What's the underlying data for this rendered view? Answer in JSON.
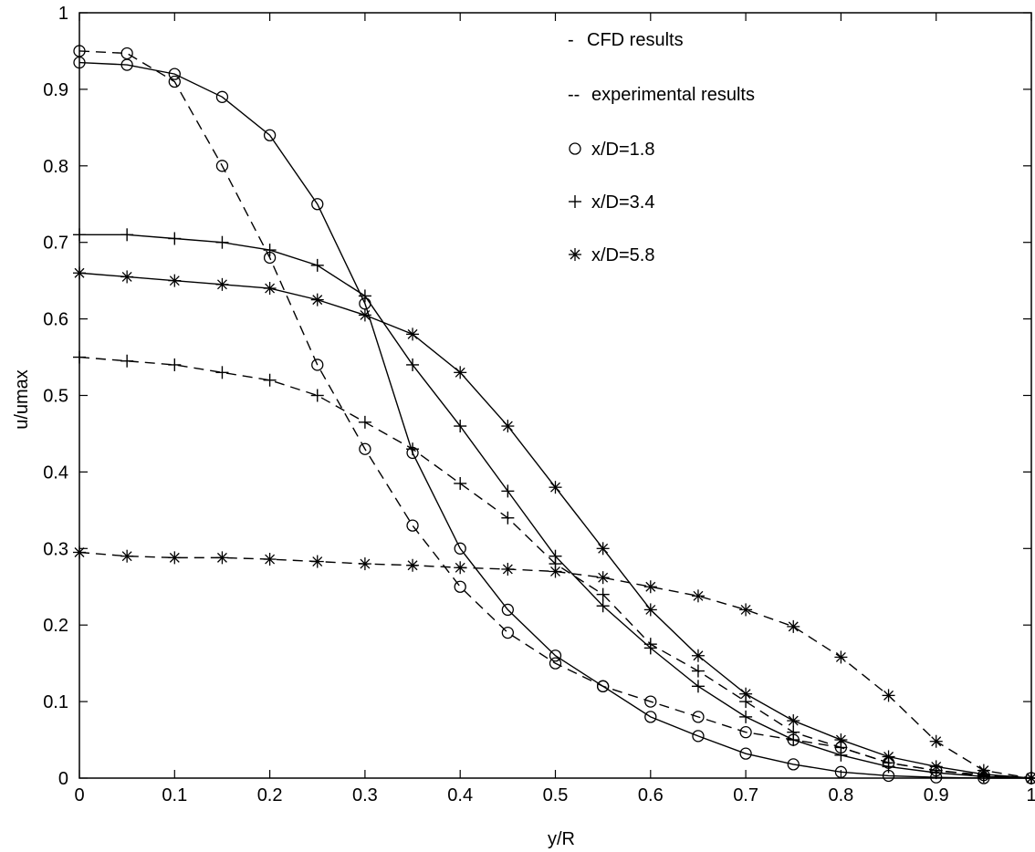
{
  "chart_data": {
    "type": "line",
    "title": "",
    "xlabel": "y/R",
    "ylabel": "u/umax",
    "xlim": [
      0,
      1
    ],
    "ylim": [
      0,
      1
    ],
    "x_ticks": [
      "0",
      "0.1",
      "0.2",
      "0.3",
      "0.4",
      "0.5",
      "0.6",
      "0.7",
      "0.8",
      "0.9",
      "1"
    ],
    "y_ticks": [
      "0",
      "0.1",
      "0.2",
      "0.3",
      "0.4",
      "0.5",
      "0.6",
      "0.7",
      "0.8",
      "0.9",
      "1"
    ],
    "grid": false,
    "legend_position": "top-right",
    "legend": [
      {
        "symbol": "-",
        "text": "CFD results"
      },
      {
        "symbol": "--",
        "text": "experimental results"
      },
      {
        "symbol": "o",
        "text": "x/D=1.8"
      },
      {
        "symbol": "+",
        "text": "x/D=3.4"
      },
      {
        "symbol": "*",
        "text": "x/D=5.8"
      }
    ],
    "series": [
      {
        "marker": "o",
        "style": "solid",
        "x": [
          0,
          0.05,
          0.1,
          0.15,
          0.2,
          0.25,
          0.3,
          0.35,
          0.4,
          0.45,
          0.5,
          0.55,
          0.6,
          0.65,
          0.7,
          0.75,
          0.8,
          0.85,
          0.9,
          0.95,
          1
        ],
        "y": [
          0.935,
          0.932,
          0.92,
          0.89,
          0.84,
          0.75,
          0.62,
          0.425,
          0.3,
          0.22,
          0.16,
          0.12,
          0.08,
          0.055,
          0.032,
          0.018,
          0.008,
          0.003,
          0.001,
          0,
          0
        ]
      },
      {
        "marker": "o",
        "style": "dashed",
        "x": [
          0,
          0.05,
          0.1,
          0.15,
          0.2,
          0.25,
          0.3,
          0.35,
          0.4,
          0.45,
          0.5,
          0.55,
          0.6,
          0.65,
          0.7,
          0.75,
          0.8,
          0.85,
          0.9,
          0.95,
          1
        ],
        "y": [
          0.95,
          0.947,
          0.91,
          0.8,
          0.68,
          0.54,
          0.43,
          0.33,
          0.25,
          0.19,
          0.15,
          0.12,
          0.1,
          0.08,
          0.06,
          0.05,
          0.04,
          0.02,
          0.01,
          0.004,
          0
        ]
      },
      {
        "marker": "+",
        "style": "solid",
        "x": [
          0,
          0.05,
          0.1,
          0.15,
          0.2,
          0.25,
          0.3,
          0.35,
          0.4,
          0.45,
          0.5,
          0.55,
          0.6,
          0.65,
          0.7,
          0.75,
          0.8,
          0.85,
          0.9,
          0.95,
          1
        ],
        "y": [
          0.71,
          0.71,
          0.705,
          0.7,
          0.69,
          0.67,
          0.63,
          0.54,
          0.46,
          0.375,
          0.29,
          0.225,
          0.17,
          0.12,
          0.08,
          0.05,
          0.03,
          0.015,
          0.007,
          0.002,
          0
        ]
      },
      {
        "marker": "+",
        "style": "dashed",
        "x": [
          0,
          0.05,
          0.1,
          0.15,
          0.2,
          0.25,
          0.3,
          0.35,
          0.4,
          0.45,
          0.5,
          0.55,
          0.6,
          0.65,
          0.7,
          0.75,
          0.8,
          0.85,
          0.9,
          0.95,
          1
        ],
        "y": [
          0.55,
          0.545,
          0.54,
          0.53,
          0.52,
          0.5,
          0.465,
          0.43,
          0.385,
          0.34,
          0.28,
          0.24,
          0.175,
          0.14,
          0.1,
          0.06,
          0.04,
          0.02,
          0.01,
          0.003,
          0
        ]
      },
      {
        "marker": "*",
        "style": "solid",
        "x": [
          0,
          0.05,
          0.1,
          0.15,
          0.2,
          0.25,
          0.3,
          0.35,
          0.4,
          0.45,
          0.5,
          0.55,
          0.6,
          0.65,
          0.7,
          0.75,
          0.8,
          0.85,
          0.9,
          0.95,
          1
        ],
        "y": [
          0.66,
          0.655,
          0.65,
          0.645,
          0.64,
          0.625,
          0.605,
          0.58,
          0.53,
          0.46,
          0.38,
          0.3,
          0.22,
          0.16,
          0.11,
          0.075,
          0.05,
          0.028,
          0.015,
          0.005,
          0
        ]
      },
      {
        "marker": "*",
        "style": "dashed",
        "x": [
          0,
          0.05,
          0.1,
          0.15,
          0.2,
          0.25,
          0.3,
          0.35,
          0.4,
          0.45,
          0.5,
          0.55,
          0.6,
          0.65,
          0.7,
          0.75,
          0.8,
          0.85,
          0.9,
          0.95,
          1
        ],
        "y": [
          0.295,
          0.29,
          0.288,
          0.288,
          0.286,
          0.283,
          0.28,
          0.278,
          0.275,
          0.273,
          0.27,
          0.262,
          0.25,
          0.238,
          0.22,
          0.198,
          0.158,
          0.108,
          0.048,
          0.01,
          0
        ]
      }
    ]
  }
}
